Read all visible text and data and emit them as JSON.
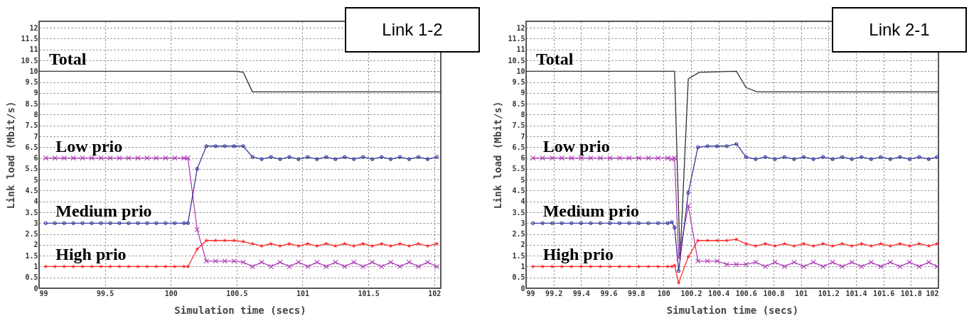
{
  "chart_data": [
    {
      "type": "line",
      "title": "Link 1-2",
      "xlabel": "Simulation time (secs)",
      "ylabel": "Link load (Mbit/s)",
      "grid": true,
      "line_style": "solid",
      "xlim": [
        99,
        102.05
      ],
      "xticks": [
        99,
        99.5,
        100,
        100.5,
        101,
        101.5,
        102
      ],
      "ylim": [
        0,
        12.3
      ],
      "yticks": [
        0,
        0.5,
        1,
        1.5,
        2,
        2.5,
        3,
        3.5,
        4,
        4.5,
        5,
        5.5,
        6,
        6.5,
        7,
        7.5,
        8,
        8.5,
        9,
        9.5,
        10,
        10.5,
        11,
        11.5,
        12
      ],
      "x": [
        99.05,
        99.12,
        99.19,
        99.26,
        99.33,
        99.4,
        99.47,
        99.54,
        99.61,
        99.68,
        99.75,
        99.82,
        99.89,
        99.96,
        100.03,
        100.1,
        100.13,
        100.2,
        100.27,
        100.34,
        100.41,
        100.48,
        100.55,
        100.62,
        100.69,
        100.76,
        100.83,
        100.9,
        100.97,
        101.04,
        101.11,
        101.18,
        101.25,
        101.32,
        101.39,
        101.46,
        101.53,
        101.6,
        101.67,
        101.74,
        101.81,
        101.88,
        101.95,
        102.02
      ],
      "series": [
        {
          "name": "Total",
          "color": "#303030",
          "marker": "none",
          "x": [
            99,
            100.5,
            100.55,
            100.62,
            102.05
          ],
          "values": [
            10,
            10,
            9.95,
            9.05,
            9.05
          ]
        },
        {
          "name": "Low prio",
          "color": "#b040b8",
          "marker": "cross",
          "values": [
            6,
            6,
            6,
            6,
            6,
            6,
            6,
            6,
            6,
            6,
            6,
            6,
            6,
            6,
            6,
            6,
            6,
            2.7,
            1.25,
            1.25,
            1.25,
            1.25,
            1.2,
            1.0,
            1.2,
            1.0,
            1.2,
            1.0,
            1.2,
            1.0,
            1.2,
            1.0,
            1.2,
            1.0,
            1.2,
            1.0,
            1.2,
            1.0,
            1.2,
            1.0,
            1.2,
            1.0,
            1.2,
            1.0
          ]
        },
        {
          "name": "Medium prio",
          "color": "#3a3a9a",
          "marker": "circle",
          "values": [
            3,
            3,
            3,
            3,
            3,
            3,
            3,
            3,
            3,
            3,
            3,
            3,
            3,
            3,
            3,
            3,
            3,
            5.5,
            6.55,
            6.55,
            6.55,
            6.55,
            6.55,
            6.05,
            5.95,
            6.05,
            5.95,
            6.05,
            5.95,
            6.05,
            5.95,
            6.05,
            5.95,
            6.05,
            5.95,
            6.05,
            5.95,
            6.05,
            5.95,
            6.05,
            5.95,
            6.05,
            5.95,
            6.05
          ]
        },
        {
          "name": "High prio",
          "color": "#ff2a2a",
          "marker": "star",
          "values": [
            1,
            1,
            1,
            1,
            1,
            1,
            1,
            1,
            1,
            1,
            1,
            1,
            1,
            1,
            1,
            1,
            1,
            1.8,
            2.2,
            2.2,
            2.2,
            2.2,
            2.15,
            2.05,
            1.95,
            2.05,
            1.95,
            2.05,
            1.95,
            2.05,
            1.95,
            2.05,
            1.95,
            2.05,
            1.95,
            2.05,
            1.95,
            2.05,
            1.95,
            2.05,
            1.95,
            2.05,
            1.95,
            2.05
          ]
        }
      ]
    },
    {
      "type": "line",
      "title": "Link 2-1",
      "xlabel": "Simulation time (secs)",
      "ylabel": "Link load (Mbit/s)",
      "grid": true,
      "line_style": "solid",
      "xlim": [
        99,
        102
      ],
      "xticks": [
        99,
        99.2,
        99.4,
        99.6,
        99.8,
        100,
        100.2,
        100.4,
        100.6,
        100.8,
        101,
        101.2,
        101.4,
        101.6,
        101.8,
        102
      ],
      "ylim": [
        0,
        12.3
      ],
      "yticks": [
        0,
        0.5,
        1,
        1.5,
        2,
        2.5,
        3,
        3.5,
        4,
        4.5,
        5,
        5.5,
        6,
        6.5,
        7,
        7.5,
        8,
        8.5,
        9,
        9.5,
        10,
        10.5,
        11,
        11.5,
        12
      ],
      "x": [
        99.05,
        99.12,
        99.19,
        99.26,
        99.33,
        99.4,
        99.47,
        99.54,
        99.61,
        99.68,
        99.75,
        99.82,
        99.89,
        99.96,
        100.03,
        100.06,
        100.08,
        100.11,
        100.18,
        100.25,
        100.32,
        100.39,
        100.46,
        100.53,
        100.6,
        100.67,
        100.74,
        100.81,
        100.88,
        100.95,
        101.02,
        101.09,
        101.16,
        101.23,
        101.3,
        101.37,
        101.44,
        101.51,
        101.58,
        101.65,
        101.72,
        101.79,
        101.86,
        101.93,
        101.99
      ],
      "series": [
        {
          "name": "Total",
          "color": "#303030",
          "marker": "none",
          "x": [
            99,
            100.08,
            100.12,
            100.18,
            100.26,
            100.53,
            100.6,
            100.68,
            102
          ],
          "values": [
            10,
            10,
            1.3,
            9.65,
            9.95,
            10,
            9.25,
            9.05,
            9.05
          ]
        },
        {
          "name": "Low prio",
          "color": "#b040b8",
          "marker": "cross",
          "values": [
            6,
            6,
            6,
            6,
            6,
            6,
            6,
            6,
            6,
            6,
            6,
            6,
            6,
            6,
            6,
            5.95,
            6,
            1.4,
            3.8,
            1.25,
            1.25,
            1.25,
            1.1,
            1.1,
            1.1,
            1.2,
            1.0,
            1.2,
            1.0,
            1.2,
            1.0,
            1.2,
            1.0,
            1.2,
            1.0,
            1.2,
            1.0,
            1.2,
            1.0,
            1.2,
            1.0,
            1.2,
            1.0,
            1.2,
            1.0
          ]
        },
        {
          "name": "Medium prio",
          "color": "#3a3a9a",
          "marker": "circle",
          "values": [
            3,
            3,
            3,
            3,
            3,
            3,
            3,
            3,
            3,
            3,
            3,
            3,
            3,
            3,
            3,
            3.05,
            2.8,
            0.8,
            4.4,
            6.5,
            6.55,
            6.55,
            6.55,
            6.65,
            6.05,
            5.95,
            6.05,
            5.95,
            6.05,
            5.95,
            6.05,
            5.95,
            6.05,
            5.95,
            6.05,
            5.95,
            6.05,
            5.95,
            6.05,
            5.95,
            6.05,
            5.95,
            6.05,
            5.95,
            6.05
          ]
        },
        {
          "name": "High prio",
          "color": "#ff2a2a",
          "marker": "star",
          "values": [
            1,
            1,
            1,
            1,
            1,
            1,
            1,
            1,
            1,
            1,
            1,
            1,
            1,
            1,
            1,
            1,
            1.05,
            0.25,
            1.45,
            2.2,
            2.2,
            2.2,
            2.2,
            2.25,
            2.05,
            1.95,
            2.05,
            1.95,
            2.05,
            1.95,
            2.05,
            1.95,
            2.05,
            1.95,
            2.05,
            1.95,
            2.05,
            1.95,
            2.05,
            1.95,
            2.05,
            1.95,
            2.05,
            1.95,
            2.05
          ]
        }
      ]
    }
  ]
}
